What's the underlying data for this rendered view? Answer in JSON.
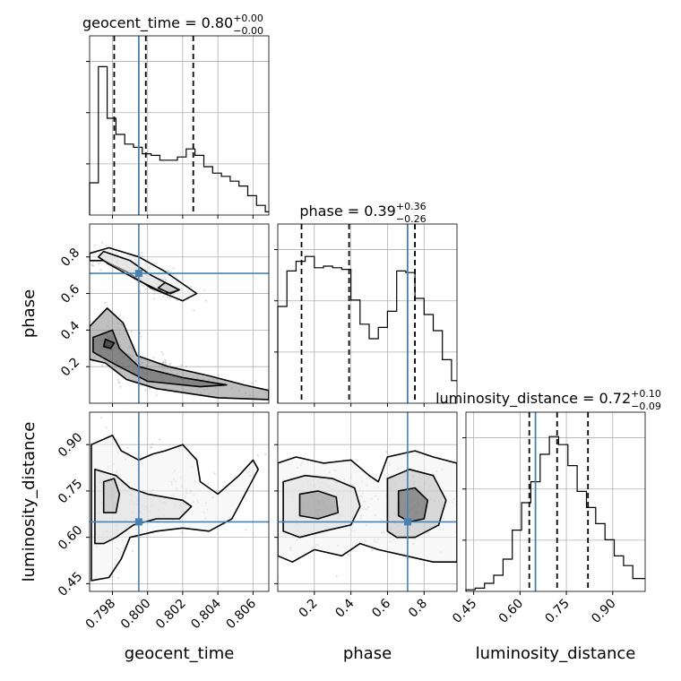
{
  "chart_data": {
    "type": "corner",
    "parameters": [
      "geocent_time",
      "phase",
      "luminosity_distance"
    ],
    "truths": {
      "geocent_time": 0.7995,
      "phase": 0.71,
      "luminosity_distance": 0.65
    },
    "truth_color": "#4682b4",
    "grid": true,
    "titles": {
      "geocent_time": {
        "label": "geocent_time = 0.80",
        "plus": "+0.00",
        "minus": "−0.00"
      },
      "phase": {
        "label": "phase = 0.39",
        "plus": "+0.36",
        "minus": "−0.26"
      },
      "luminosity_distance": {
        "label": "luminosity_distance = 0.72",
        "plus": "+0.10",
        "minus": "−0.09"
      }
    },
    "axes": {
      "geocent_time": {
        "range": [
          0.7967,
          0.8069
        ],
        "ticks": [
          0.798,
          0.8,
          0.802,
          0.804,
          0.806
        ],
        "tick_labels": [
          "0.798",
          "0.800",
          "0.802",
          "0.804",
          "0.806"
        ],
        "xlabel": "geocent_time"
      },
      "phase": {
        "range": [
          0.0,
          0.98
        ],
        "ticks": [
          0.2,
          0.4,
          0.6,
          0.8
        ],
        "tick_labels": [
          "0.2",
          "0.4",
          "0.6",
          "0.8"
        ],
        "xlabel": "phase",
        "ylabel": "phase"
      },
      "luminosity_distance": {
        "range": [
          0.425,
          1.005
        ],
        "ticks": [
          0.45,
          0.6,
          0.75,
          0.9
        ],
        "tick_labels": [
          "0.45",
          "0.60",
          "0.75",
          "0.90"
        ],
        "xlabel": "luminosity_distance",
        "ylabel": "luminosity_distance"
      }
    },
    "histograms": {
      "geocent_time": {
        "quantiles": [
          0.7981,
          0.7999,
          0.8026
        ],
        "bins": [
          [
            0.7967,
            0.7972,
            0.2
          ],
          [
            0.7972,
            0.7977,
            0.92
          ],
          [
            0.7977,
            0.7982,
            0.6
          ],
          [
            0.7982,
            0.7987,
            0.5
          ],
          [
            0.7987,
            0.7992,
            0.44
          ],
          [
            0.7992,
            0.7997,
            0.42
          ],
          [
            0.7997,
            0.8002,
            0.38
          ],
          [
            0.8002,
            0.8007,
            0.37
          ],
          [
            0.8007,
            0.8012,
            0.34
          ],
          [
            0.8012,
            0.8017,
            0.34
          ],
          [
            0.8017,
            0.8022,
            0.36
          ],
          [
            0.8022,
            0.8027,
            0.41
          ],
          [
            0.8027,
            0.8032,
            0.37
          ],
          [
            0.8032,
            0.8037,
            0.3
          ],
          [
            0.8037,
            0.8042,
            0.26
          ],
          [
            0.8042,
            0.8047,
            0.24
          ],
          [
            0.8047,
            0.8052,
            0.21
          ],
          [
            0.8052,
            0.8057,
            0.18
          ],
          [
            0.8057,
            0.8062,
            0.12
          ],
          [
            0.8062,
            0.8067,
            0.06
          ],
          [
            0.8067,
            0.8069,
            0.02
          ]
        ]
      },
      "phase": {
        "quantiles": [
          0.13,
          0.39,
          0.75
        ],
        "bins": [
          [
            0.0,
            0.05,
            0.6
          ],
          [
            0.05,
            0.1,
            0.82
          ],
          [
            0.1,
            0.15,
            0.88
          ],
          [
            0.15,
            0.2,
            0.91
          ],
          [
            0.2,
            0.25,
            0.84
          ],
          [
            0.25,
            0.3,
            0.85
          ],
          [
            0.3,
            0.35,
            0.84
          ],
          [
            0.35,
            0.4,
            0.83
          ],
          [
            0.4,
            0.45,
            0.64
          ],
          [
            0.45,
            0.5,
            0.49
          ],
          [
            0.5,
            0.55,
            0.4
          ],
          [
            0.55,
            0.6,
            0.47
          ],
          [
            0.6,
            0.65,
            0.57
          ],
          [
            0.65,
            0.7,
            0.82
          ],
          [
            0.7,
            0.75,
            0.81
          ],
          [
            0.75,
            0.8,
            0.65
          ],
          [
            0.8,
            0.85,
            0.55
          ],
          [
            0.85,
            0.9,
            0.45
          ],
          [
            0.9,
            0.95,
            0.27
          ],
          [
            0.95,
            0.98,
            0.14
          ]
        ]
      },
      "luminosity_distance": {
        "quantiles": [
          0.63,
          0.72,
          0.82
        ],
        "bins": [
          [
            0.425,
            0.455,
            0.01
          ],
          [
            0.455,
            0.485,
            0.02
          ],
          [
            0.485,
            0.515,
            0.05
          ],
          [
            0.515,
            0.545,
            0.1
          ],
          [
            0.545,
            0.575,
            0.2
          ],
          [
            0.575,
            0.605,
            0.38
          ],
          [
            0.605,
            0.635,
            0.55
          ],
          [
            0.635,
            0.665,
            0.68
          ],
          [
            0.665,
            0.695,
            0.85
          ],
          [
            0.695,
            0.725,
            0.96
          ],
          [
            0.725,
            0.755,
            0.91
          ],
          [
            0.755,
            0.785,
            0.78
          ],
          [
            0.785,
            0.815,
            0.62
          ],
          [
            0.815,
            0.845,
            0.52
          ],
          [
            0.845,
            0.875,
            0.42
          ],
          [
            0.875,
            0.905,
            0.32
          ],
          [
            0.905,
            0.935,
            0.22
          ],
          [
            0.935,
            0.965,
            0.16
          ],
          [
            0.965,
            1.005,
            0.08
          ]
        ]
      }
    },
    "contours": {
      "phase_vs_geocent_time": [
        [
          [
            0.7967,
            0.82
          ],
          [
            0.7978,
            0.85
          ],
          [
            0.7995,
            0.8
          ],
          [
            0.801,
            0.72
          ],
          [
            0.8028,
            0.6
          ],
          [
            0.802,
            0.56
          ],
          [
            0.8002,
            0.63
          ],
          [
            0.7988,
            0.72
          ],
          [
            0.7975,
            0.78
          ],
          [
            0.7967,
            0.78
          ]
        ],
        [
          [
            0.7975,
            0.83
          ],
          [
            0.799,
            0.78
          ],
          [
            0.8002,
            0.7
          ],
          [
            0.8018,
            0.62
          ],
          [
            0.801,
            0.6
          ],
          [
            0.7995,
            0.67
          ],
          [
            0.7978,
            0.76
          ],
          [
            0.7972,
            0.8
          ]
        ],
        [
          [
            0.801,
            0.66
          ],
          [
            0.8018,
            0.62
          ],
          [
            0.8013,
            0.6
          ],
          [
            0.8006,
            0.63
          ]
        ],
        [
          [
            0.7967,
            0.42
          ],
          [
            0.7977,
            0.52
          ],
          [
            0.7986,
            0.44
          ],
          [
            0.7994,
            0.26
          ],
          [
            0.8012,
            0.2
          ],
          [
            0.8035,
            0.15
          ],
          [
            0.8055,
            0.1
          ],
          [
            0.8069,
            0.07
          ],
          [
            0.8069,
            0.02
          ],
          [
            0.804,
            0.03
          ],
          [
            0.8005,
            0.08
          ],
          [
            0.7988,
            0.13
          ],
          [
            0.7976,
            0.22
          ],
          [
            0.7967,
            0.24
          ]
        ],
        [
          [
            0.7969,
            0.36
          ],
          [
            0.798,
            0.4
          ],
          [
            0.7984,
            0.3
          ],
          [
            0.7995,
            0.2
          ],
          [
            0.802,
            0.14
          ],
          [
            0.8045,
            0.1
          ],
          [
            0.803,
            0.09
          ],
          [
            0.8,
            0.12
          ],
          [
            0.798,
            0.22
          ],
          [
            0.7969,
            0.28
          ]
        ],
        [
          [
            0.7976,
            0.35
          ],
          [
            0.7981,
            0.33
          ],
          [
            0.7979,
            0.3
          ],
          [
            0.7975,
            0.31
          ]
        ]
      ],
      "luminosity_distance_vs_geocent_time": [
        [
          [
            0.7968,
            0.46
          ],
          [
            0.7968,
            0.9
          ],
          [
            0.798,
            0.93
          ],
          [
            0.7985,
            0.88
          ],
          [
            0.7995,
            0.85
          ],
          [
            0.8003,
            0.87
          ],
          [
            0.801,
            0.88
          ],
          [
            0.802,
            0.9
          ],
          [
            0.8028,
            0.85
          ],
          [
            0.803,
            0.78
          ],
          [
            0.804,
            0.74
          ],
          [
            0.8052,
            0.8
          ],
          [
            0.806,
            0.85
          ],
          [
            0.8063,
            0.82
          ],
          [
            0.8048,
            0.66
          ],
          [
            0.8035,
            0.62
          ],
          [
            0.802,
            0.63
          ],
          [
            0.8005,
            0.62
          ],
          [
            0.799,
            0.6
          ],
          [
            0.7985,
            0.53
          ],
          [
            0.7978,
            0.47
          ]
        ],
        [
          [
            0.797,
            0.58
          ],
          [
            0.797,
            0.82
          ],
          [
            0.7982,
            0.8
          ],
          [
            0.799,
            0.76
          ],
          [
            0.8,
            0.74
          ],
          [
            0.801,
            0.73
          ],
          [
            0.802,
            0.72
          ],
          [
            0.8025,
            0.7
          ],
          [
            0.8018,
            0.66
          ],
          [
            0.8005,
            0.66
          ],
          [
            0.7992,
            0.64
          ],
          [
            0.7982,
            0.6
          ],
          [
            0.7975,
            0.58
          ]
        ],
        [
          [
            0.7975,
            0.68
          ],
          [
            0.7975,
            0.78
          ],
          [
            0.7981,
            0.79
          ],
          [
            0.7984,
            0.74
          ],
          [
            0.7982,
            0.68
          ]
        ]
      ],
      "luminosity_distance_vs_phase": [
        [
          [
            0.0,
            0.54
          ],
          [
            0.0,
            0.84
          ],
          [
            0.1,
            0.86
          ],
          [
            0.25,
            0.84
          ],
          [
            0.4,
            0.85
          ],
          [
            0.5,
            0.8
          ],
          [
            0.55,
            0.78
          ],
          [
            0.6,
            0.86
          ],
          [
            0.75,
            0.88
          ],
          [
            0.85,
            0.86
          ],
          [
            0.98,
            0.84
          ],
          [
            0.98,
            0.52
          ],
          [
            0.85,
            0.52
          ],
          [
            0.7,
            0.54
          ],
          [
            0.55,
            0.56
          ],
          [
            0.45,
            0.58
          ],
          [
            0.35,
            0.54
          ],
          [
            0.2,
            0.56
          ],
          [
            0.08,
            0.52
          ]
        ],
        [
          [
            0.03,
            0.62
          ],
          [
            0.03,
            0.78
          ],
          [
            0.15,
            0.8
          ],
          [
            0.3,
            0.79
          ],
          [
            0.42,
            0.76
          ],
          [
            0.45,
            0.7
          ],
          [
            0.4,
            0.64
          ],
          [
            0.25,
            0.62
          ],
          [
            0.12,
            0.6
          ]
        ],
        [
          [
            0.6,
            0.62
          ],
          [
            0.6,
            0.79
          ],
          [
            0.72,
            0.82
          ],
          [
            0.85,
            0.8
          ],
          [
            0.92,
            0.72
          ],
          [
            0.88,
            0.64
          ],
          [
            0.75,
            0.6
          ],
          [
            0.65,
            0.6
          ]
        ],
        [
          [
            0.12,
            0.67
          ],
          [
            0.12,
            0.74
          ],
          [
            0.22,
            0.75
          ],
          [
            0.32,
            0.73
          ],
          [
            0.33,
            0.68
          ],
          [
            0.22,
            0.66
          ]
        ],
        [
          [
            0.66,
            0.67
          ],
          [
            0.66,
            0.75
          ],
          [
            0.75,
            0.76
          ],
          [
            0.82,
            0.72
          ],
          [
            0.8,
            0.66
          ],
          [
            0.72,
            0.65
          ]
        ]
      ]
    }
  }
}
